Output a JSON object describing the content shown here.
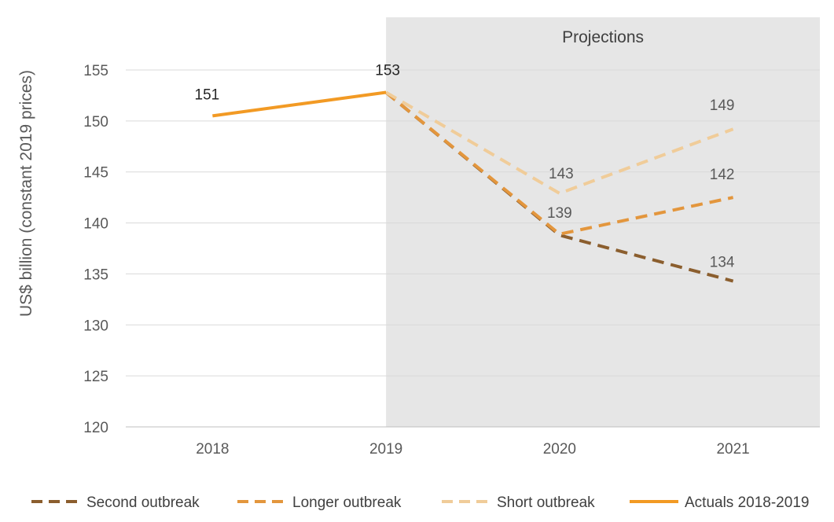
{
  "chart_data": {
    "type": "line",
    "categories": [
      "2018",
      "2019",
      "2020",
      "2021"
    ],
    "ylabel": "US$ billion (constant 2019 prices)",
    "ylim": [
      120,
      155
    ],
    "yticks": [
      120,
      125,
      130,
      135,
      140,
      145,
      150,
      155
    ],
    "grid": true,
    "legend_position": "bottom",
    "shaded_region": {
      "label": "Projections",
      "from_category": "2019",
      "color": "#e6e6e6"
    },
    "series": [
      {
        "name": "Second outbreak",
        "style": "dashed",
        "color": "#8b5e2e",
        "label_color": "#595959",
        "values": [
          null,
          152.8,
          138.8,
          134.3
        ],
        "labels": [
          null,
          null,
          null,
          "134"
        ]
      },
      {
        "name": "Longer outbreak",
        "style": "dashed",
        "color": "#e3963d",
        "label_color": "#595959",
        "values": [
          null,
          152.8,
          138.9,
          142.5
        ],
        "labels": [
          null,
          null,
          "139",
          "142"
        ]
      },
      {
        "name": "Short outbreak",
        "style": "dashed",
        "color": "#f0cc99",
        "label_color": "#595959",
        "values": [
          null,
          152.8,
          142.9,
          149.2
        ],
        "labels": [
          null,
          null,
          "143",
          "149"
        ]
      },
      {
        "name": "Actuals 2018-2019",
        "style": "solid",
        "color": "#f29a24",
        "label_color": "#262626",
        "values": [
          150.5,
          152.8,
          null,
          null
        ],
        "labels": [
          "151",
          "153",
          null,
          null
        ]
      }
    ]
  }
}
